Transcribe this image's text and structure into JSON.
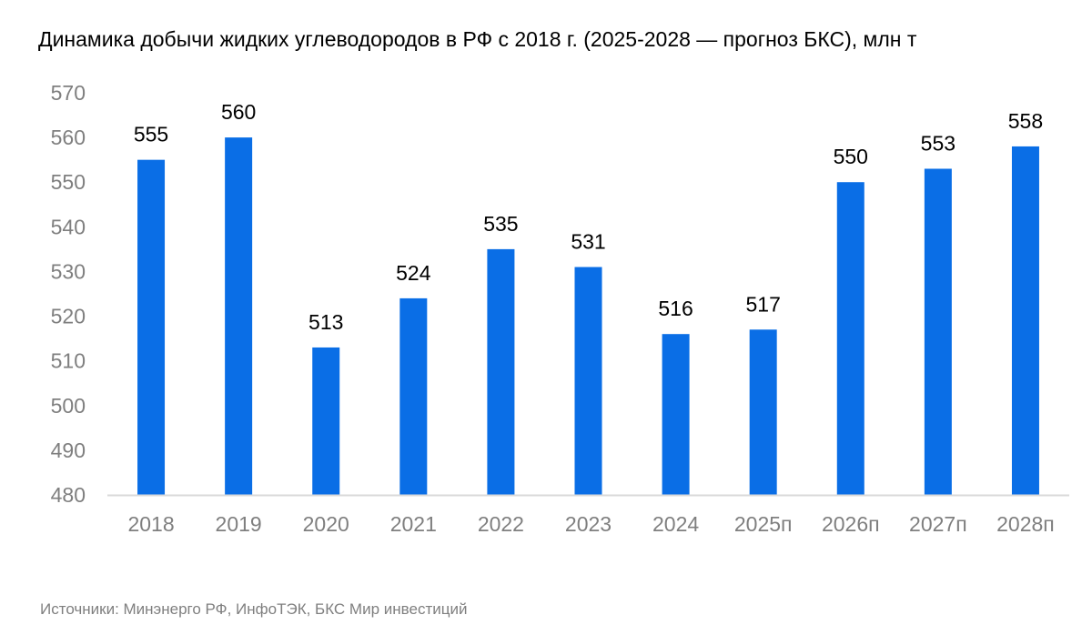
{
  "chart_data": {
    "type": "bar",
    "title": "Динамика добычи жидких углеводородов в РФ с 2018 г. (2025-2028 — прогноз БКС), млн т",
    "source": "Источники: Минэнерго РФ, ИнфоТЭК, БКС Мир инвестиций",
    "categories": [
      "2018",
      "2019",
      "2020",
      "2021",
      "2022",
      "2023",
      "2024",
      "2025п",
      "2026п",
      "2027п",
      "2028п"
    ],
    "values": [
      555,
      560,
      513,
      524,
      535,
      531,
      516,
      517,
      550,
      553,
      558
    ],
    "value_labels": [
      "555",
      "560",
      "513",
      "524",
      "535",
      "531",
      "516",
      "517",
      "550",
      "553",
      "558"
    ],
    "ylim": [
      480,
      570
    ],
    "yticks": [
      "480",
      "490",
      "500",
      "510",
      "520",
      "530",
      "540",
      "550",
      "560",
      "570"
    ],
    "xlabel": "",
    "ylabel": "",
    "grid": false,
    "legend": "none",
    "bar_color": "#0a6ee6",
    "axis_color": "#d9d9d9"
  }
}
